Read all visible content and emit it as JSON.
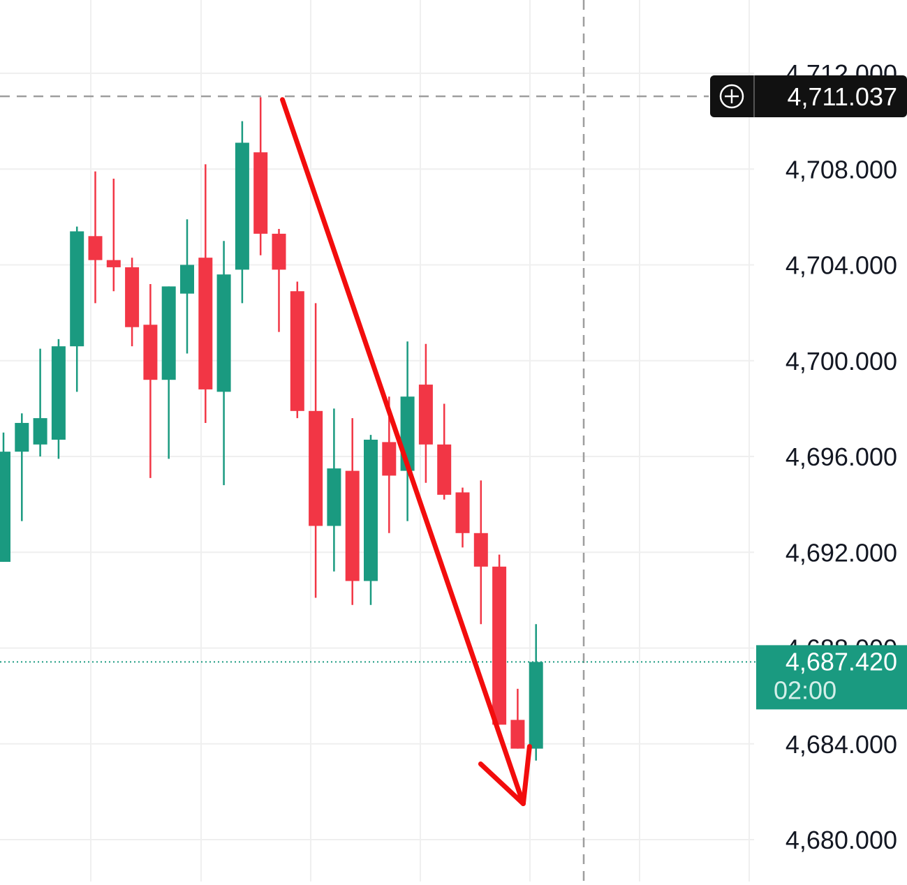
{
  "chart_data": {
    "type": "candlestick",
    "title": "",
    "xlabel": "",
    "ylabel": "",
    "ylim": [
      4679.2,
      4713.3
    ],
    "y_ticks": [
      "4,712.000",
      "4,708.000",
      "4,704.000",
      "4,700.000",
      "4,696.000",
      "4,692.000",
      "4,688.000",
      "4,684.000",
      "4,680.000"
    ],
    "y_tick_values": [
      4712,
      4708,
      4704,
      4700,
      4696,
      4692,
      4688,
      4684,
      4680
    ],
    "grid": true,
    "colors": {
      "up": "#1a9a80",
      "down": "#f23645",
      "arrow": "#f20d0d",
      "crosshair": "#9e9e9e",
      "last_price": "#1a9a80",
      "crosshair_label_bg": "#111111"
    },
    "candles": [
      {
        "open": 4691.6,
        "high": 4697.0,
        "low": 4691.6,
        "close": 4696.2
      },
      {
        "open": 4696.2,
        "high": 4697.8,
        "low": 4693.3,
        "close": 4697.4
      },
      {
        "open": 4696.5,
        "high": 4700.5,
        "low": 4696.0,
        "close": 4697.6
      },
      {
        "open": 4696.7,
        "high": 4700.9,
        "low": 4695.9,
        "close": 4700.6
      },
      {
        "open": 4700.6,
        "high": 4705.6,
        "low": 4698.7,
        "close": 4705.4
      },
      {
        "open": 4705.2,
        "high": 4707.9,
        "low": 4702.4,
        "close": 4704.2
      },
      {
        "open": 4704.2,
        "high": 4707.6,
        "low": 4702.9,
        "close": 4703.9
      },
      {
        "open": 4703.9,
        "high": 4704.3,
        "low": 4700.6,
        "close": 4701.4
      },
      {
        "open": 4701.5,
        "high": 4703.2,
        "low": 4695.1,
        "close": 4699.2
      },
      {
        "open": 4699.2,
        "high": 4703.1,
        "low": 4695.9,
        "close": 4703.1
      },
      {
        "open": 4702.8,
        "high": 4705.9,
        "low": 4700.3,
        "close": 4704.0
      },
      {
        "open": 4704.3,
        "high": 4708.2,
        "low": 4697.4,
        "close": 4698.8
      },
      {
        "open": 4698.7,
        "high": 4705.0,
        "low": 4694.8,
        "close": 4703.6
      },
      {
        "open": 4703.8,
        "high": 4710.0,
        "low": 4702.4,
        "close": 4709.1
      },
      {
        "open": 4708.7,
        "high": 4711.0,
        "low": 4704.4,
        "close": 4705.3
      },
      {
        "open": 4705.3,
        "high": 4705.5,
        "low": 4701.2,
        "close": 4703.8
      },
      {
        "open": 4702.9,
        "high": 4703.3,
        "low": 4697.6,
        "close": 4697.9
      },
      {
        "open": 4697.9,
        "high": 4702.4,
        "low": 4690.1,
        "close": 4693.1
      },
      {
        "open": 4693.1,
        "high": 4698.0,
        "low": 4691.2,
        "close": 4695.5
      },
      {
        "open": 4695.4,
        "high": 4697.6,
        "low": 4689.8,
        "close": 4690.8
      },
      {
        "open": 4690.8,
        "high": 4696.9,
        "low": 4689.8,
        "close": 4696.7
      },
      {
        "open": 4696.6,
        "high": 4698.5,
        "low": 4692.8,
        "close": 4695.2
      },
      {
        "open": 4695.4,
        "high": 4700.8,
        "low": 4693.3,
        "close": 4698.5
      },
      {
        "open": 4699.0,
        "high": 4700.7,
        "low": 4694.9,
        "close": 4696.5
      },
      {
        "open": 4696.5,
        "high": 4698.2,
        "low": 4694.2,
        "close": 4694.4
      },
      {
        "open": 4694.5,
        "high": 4694.7,
        "low": 4692.2,
        "close": 4692.8
      },
      {
        "open": 4692.8,
        "high": 4695.0,
        "low": 4689.0,
        "close": 4691.4
      },
      {
        "open": 4691.4,
        "high": 4691.9,
        "low": 4684.8,
        "close": 4684.8
      },
      {
        "open": 4685.0,
        "high": 4686.3,
        "low": 4683.8,
        "close": 4683.8
      },
      {
        "open": 4683.8,
        "high": 4689.0,
        "low": 4683.3,
        "close": 4687.42
      }
    ],
    "crosshair_price": "4,711.037",
    "last_price": "4,687.420",
    "countdown": "02:00",
    "annotations": [
      {
        "type": "arrow",
        "color": "#f20d0d",
        "from_candle": 15,
        "from_price": 4710.9,
        "to_candle": 28,
        "to_price": 4681.5
      }
    ]
  }
}
